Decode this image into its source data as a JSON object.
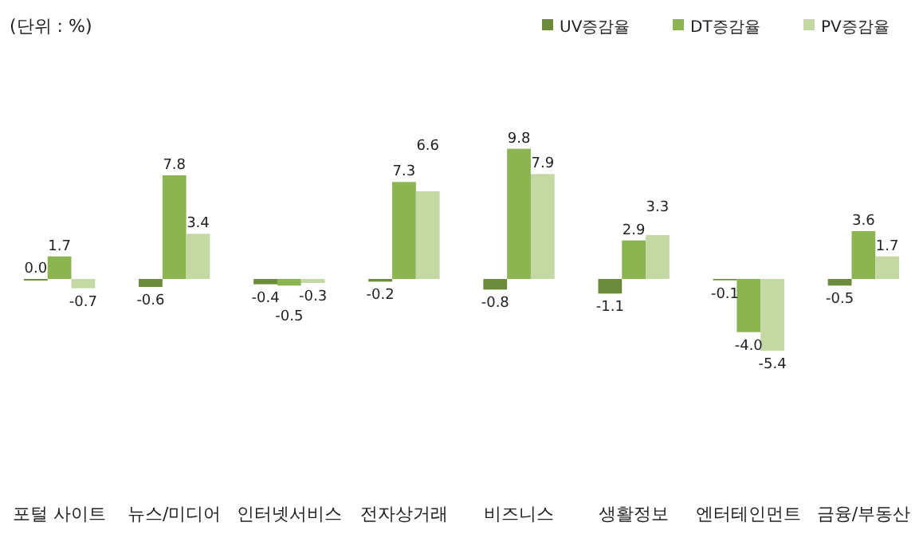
{
  "chart_data": {
    "type": "bar",
    "categories": [
      "포털 사이트",
      "뉴스/미디어",
      "인터넷서비스",
      "전자상거래",
      "비즈니스",
      "생활정보",
      "엔터테인먼트",
      "금융/부동산"
    ],
    "series": [
      {
        "name": "UV증감율",
        "color": "#6b8a3c",
        "values": [
          0.0,
          -0.6,
          -0.4,
          -0.2,
          -0.8,
          -1.1,
          -0.1,
          -0.5
        ],
        "value_labels": [
          "0.0",
          "-0.6",
          "-0.4",
          "-0.2",
          "-0.8",
          "-1.1",
          "-0.1",
          "-0.5"
        ]
      },
      {
        "name": "DT증감율",
        "color": "#8cb552",
        "values": [
          1.7,
          7.8,
          -0.5,
          7.3,
          9.8,
          2.9,
          -4.0,
          3.6
        ],
        "value_labels": [
          "1.7",
          "7.8",
          "-0.5",
          "7.3",
          "9.8",
          "2.9",
          "-4.0",
          "3.6"
        ]
      },
      {
        "name": "PV증감율",
        "color": "#c4d8a4",
        "values": [
          -0.7,
          3.4,
          -0.3,
          6.6,
          7.9,
          3.3,
          -5.4,
          1.7
        ],
        "value_labels": [
          "-0.7",
          "3.4",
          "-0.3",
          "6.6",
          "7.9",
          "3.3",
          "-5.4",
          "1.7"
        ]
      }
    ],
    "legend": "top right",
    "annotations": [
      "(단위 : %)"
    ]
  }
}
